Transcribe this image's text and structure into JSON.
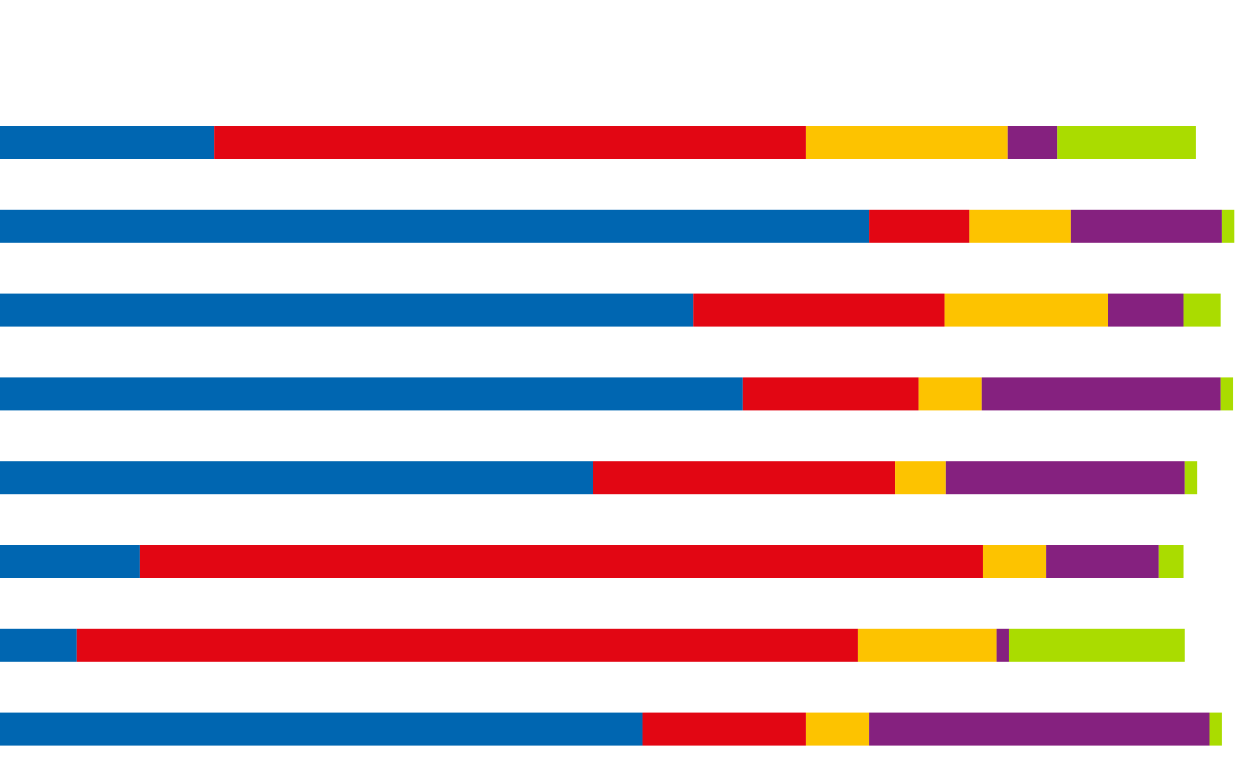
{
  "chart_data": {
    "type": "bar",
    "orientation": "horizontal",
    "stacked": true,
    "title": "",
    "xlabel": "",
    "ylabel": "",
    "categories": [
      "",
      "",
      "",
      "",
      "",
      "",
      "",
      ""
    ],
    "xlim": [
      0,
      100
    ],
    "grid": false,
    "legend": "none",
    "axes_visible": false,
    "series": [
      {
        "color": "#0066b1",
        "values": [
          17.3,
          70.2,
          56.0,
          60.0,
          47.9,
          11.3,
          6.2,
          51.9
        ]
      },
      {
        "color": "#e20613",
        "values": [
          47.8,
          8.1,
          20.3,
          14.2,
          24.4,
          68.1,
          63.1,
          13.2
        ]
      },
      {
        "color": "#fdc300",
        "values": [
          16.3,
          8.2,
          13.2,
          5.1,
          4.1,
          5.1,
          11.2,
          5.1
        ]
      },
      {
        "color": "#85217f",
        "values": [
          4.0,
          12.2,
          6.1,
          19.3,
          19.3,
          9.1,
          1.0,
          27.5
        ]
      },
      {
        "color": "#aadc00",
        "values": [
          11.2,
          1.0,
          3.0,
          1.0,
          1.0,
          2.0,
          14.2,
          1.0
        ]
      }
    ]
  }
}
